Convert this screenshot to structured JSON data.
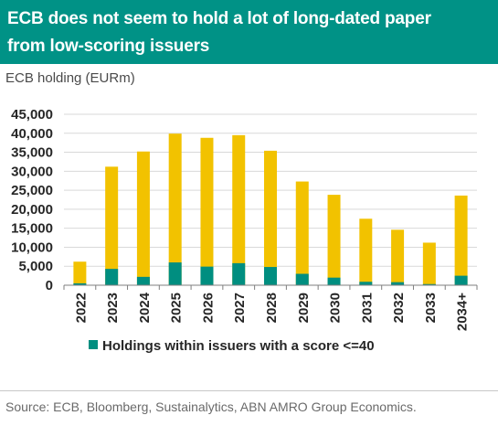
{
  "title": {
    "line1": "ECB does not seem to hold a lot of  long-dated paper",
    "line2": "from low-scoring issuers"
  },
  "source": "Source: ECB,  Bloomberg, Sustainalytics, ABN AMRO Group Economics.",
  "colors": {
    "banner": "#009286",
    "total": "#F2C200",
    "low_score": "#008E80",
    "grid": "#D9D9D9",
    "axis": "#7f7f7f"
  },
  "chart_data": {
    "type": "bar",
    "stacked": true,
    "ylabel": "ECB holding (EURm)",
    "ylim": [
      0,
      45000
    ],
    "yticks": [
      "0",
      "5,000",
      "10,000",
      "15,000",
      "20,000",
      "25,000",
      "30,000",
      "35,000",
      "40,000",
      "45,000"
    ],
    "categories": [
      "2022",
      "2023",
      "2024",
      "2025",
      "2026",
      "2027",
      "2028",
      "2029",
      "2030",
      "2031",
      "2032",
      "2033",
      "2034+"
    ],
    "series": [
      {
        "values": [
          6200,
          31200,
          35200,
          39900,
          38800,
          39500,
          35400,
          27300,
          23800,
          17500,
          14600,
          11200,
          23600
        ]
      },
      {
        "name": "Holdings within issuers with a score <=40",
        "values": [
          500,
          4300,
          2200,
          6000,
          4900,
          5800,
          4800,
          3000,
          2000,
          900,
          800,
          300,
          2500
        ]
      }
    ],
    "legend": "bottom",
    "grid": true
  }
}
